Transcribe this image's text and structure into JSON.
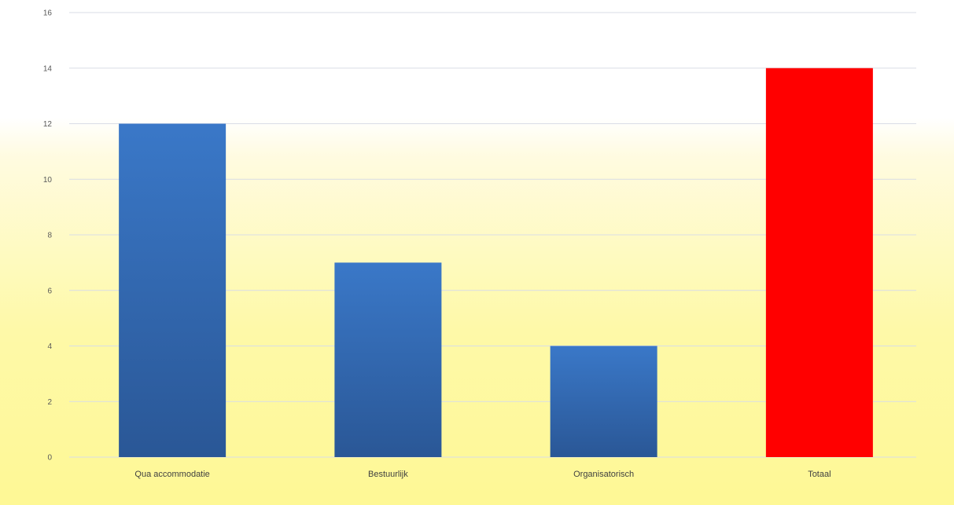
{
  "chart_data": {
    "type": "bar",
    "title": "",
    "xlabel": "",
    "ylabel": "",
    "categories": [
      "Qua accommodatie",
      "Bestuurlijk",
      "Organisatorisch",
      "Totaal"
    ],
    "values": [
      12,
      7,
      4,
      14
    ],
    "bar_colors": [
      "#2e5fa3",
      "#2e5fa3",
      "#2e5fa3",
      "#ff0000"
    ],
    "ylim": [
      0,
      16
    ],
    "yticks": [
      0,
      2,
      4,
      6,
      8,
      10,
      12,
      14,
      16
    ],
    "grid": true,
    "legend": "none"
  },
  "colors": {
    "bar_top": "#3a78c8",
    "bar_bottom": "#2a5796",
    "highlight": "#ff0000",
    "gridline": "#d9dde6"
  }
}
